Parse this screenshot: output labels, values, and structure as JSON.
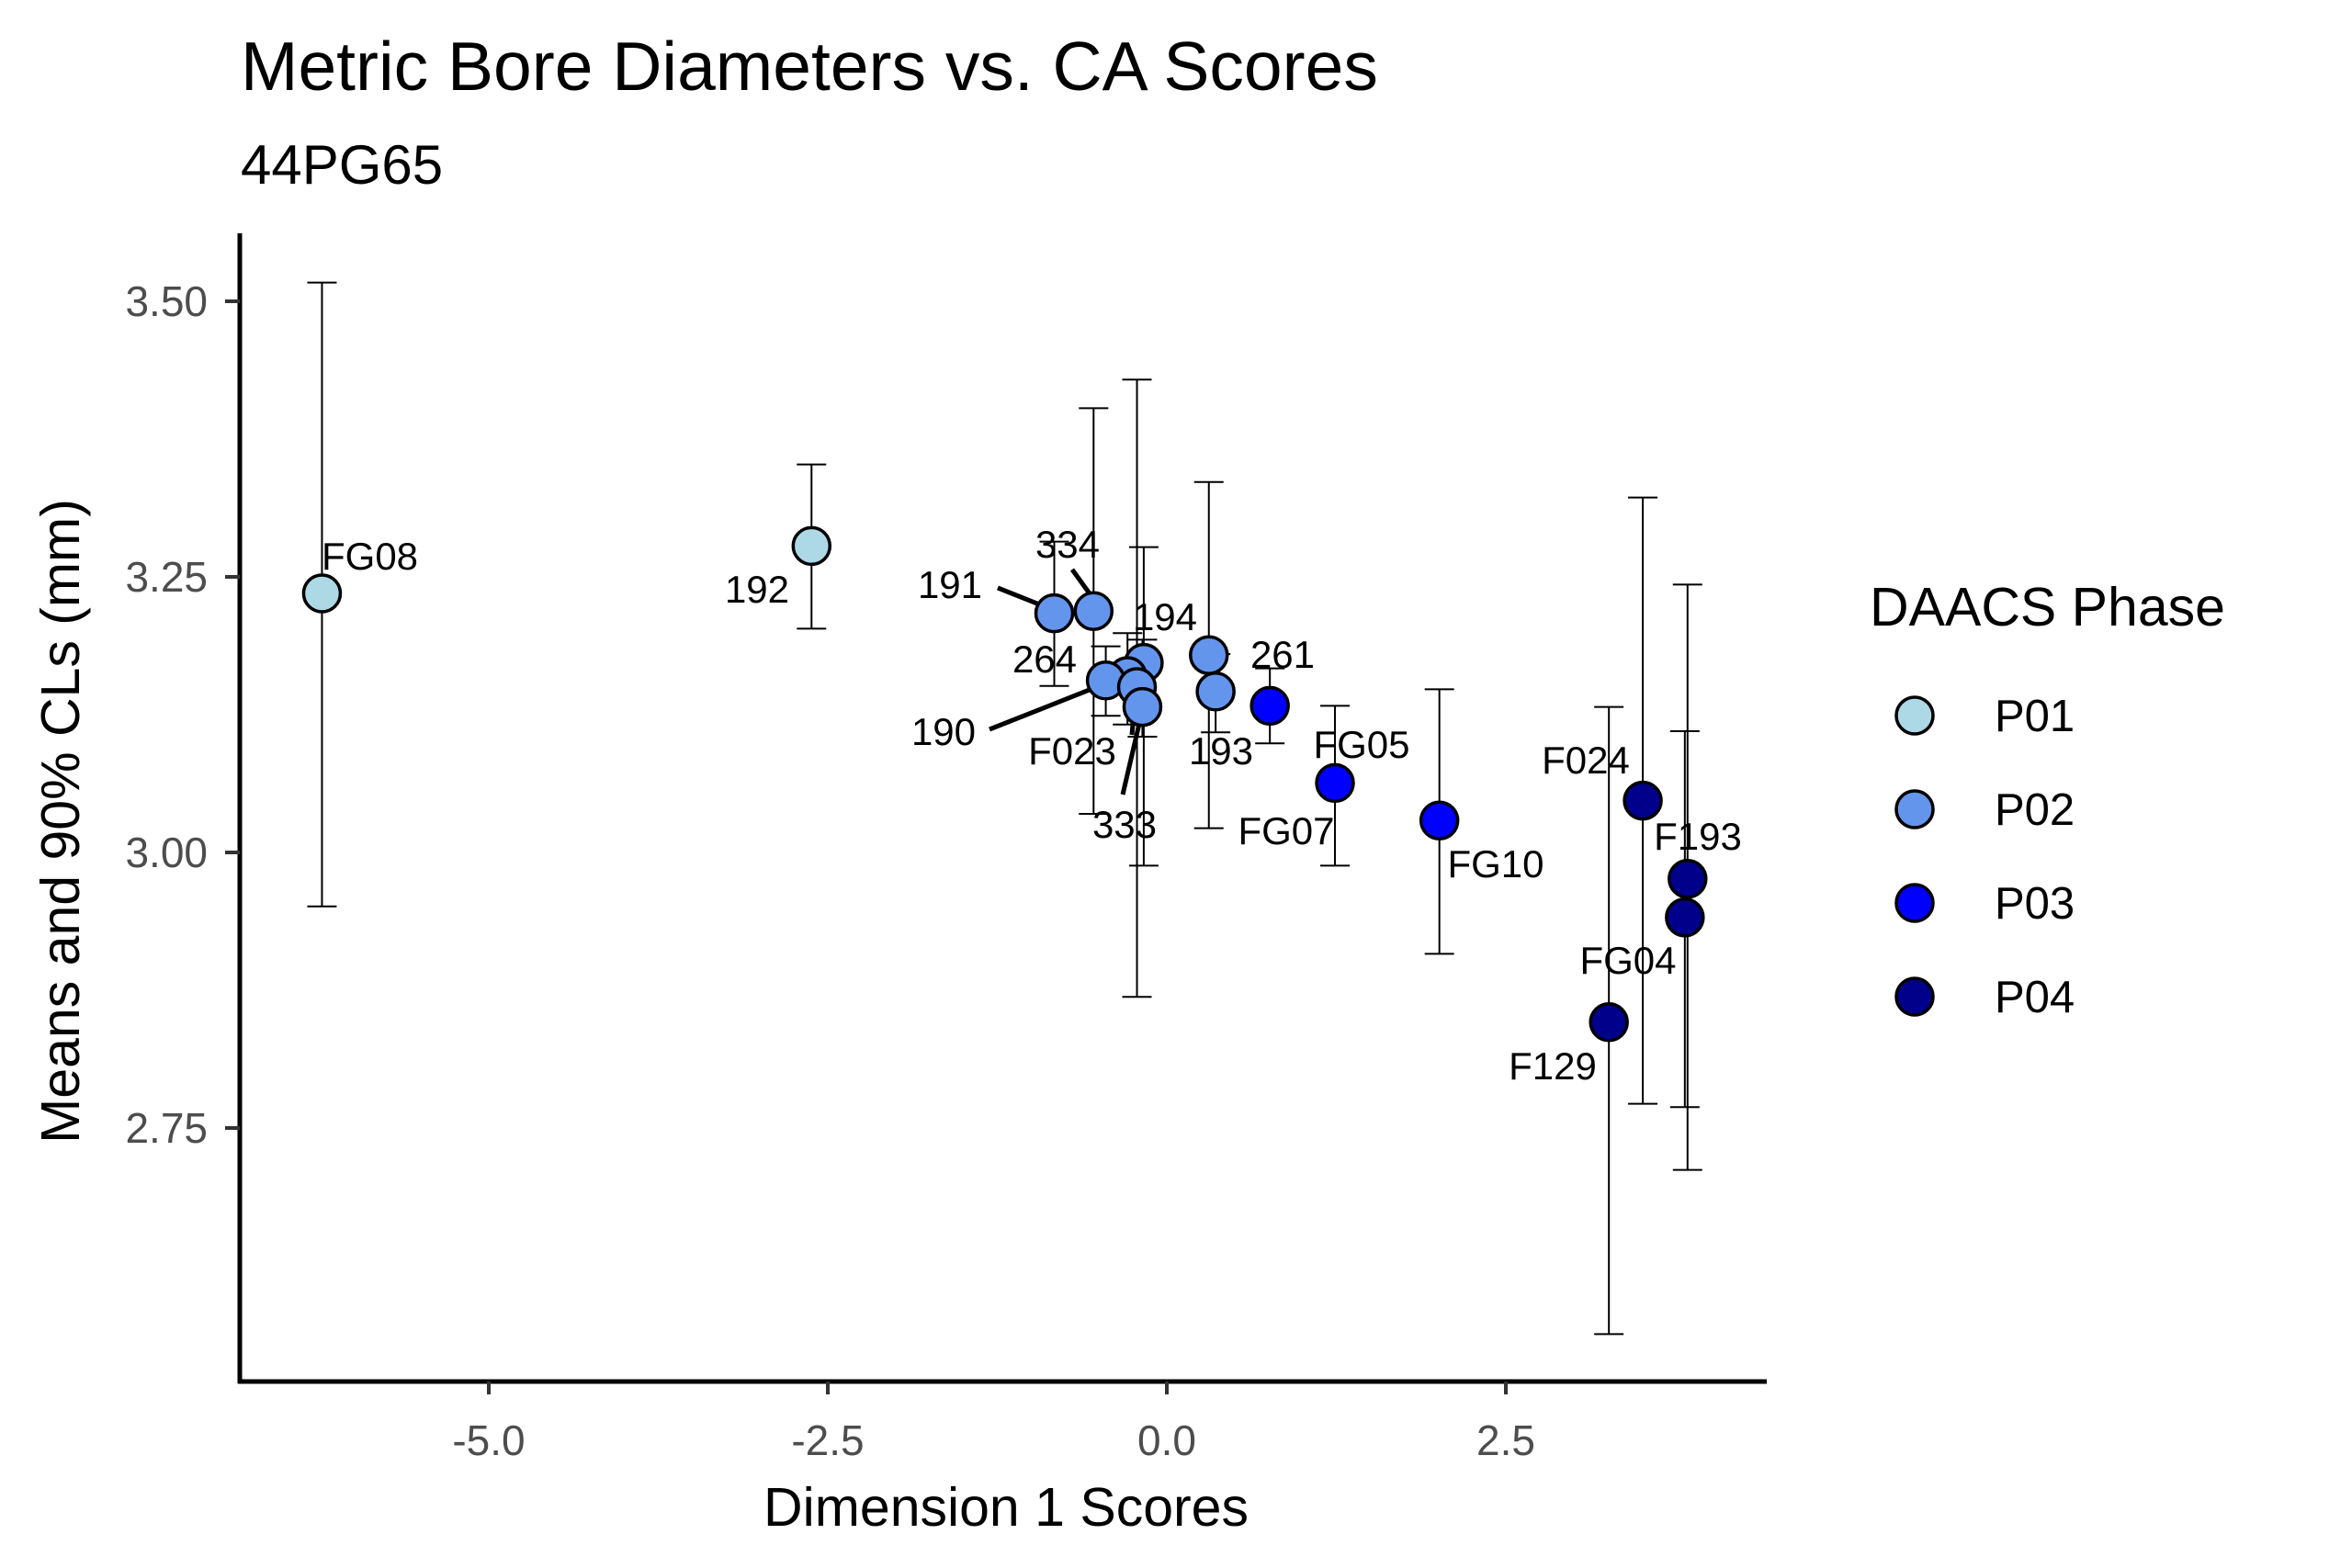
{
  "chart_data": {
    "type": "scatter",
    "title": "Metric Bore Diameters vs. CA Scores",
    "subtitle": "44PG65",
    "xlabel": "Dimension 1 Scores",
    "ylabel": "Means and 90% CLs (mm)",
    "xlim": [
      -6.7,
      4.42
    ],
    "ylim": [
      2.53,
      3.56
    ],
    "x_ticks": [
      -5.0,
      -2.5,
      0.0,
      2.5
    ],
    "x_tick_labels": [
      "-5.0",
      "-2.5",
      "0.0",
      "2.5"
    ],
    "y_ticks": [
      3.5,
      3.25,
      3.0,
      2.75
    ],
    "y_tick_labels": [
      "3.50",
      "3.25",
      "3.00",
      "2.75"
    ],
    "grid": false,
    "legend": {
      "title": "DAACS Phase",
      "placement": "right",
      "entries": [
        {
          "label": "P01",
          "color": "#ADD8E6"
        },
        {
          "label": "P02",
          "color": "#6495ED"
        },
        {
          "label": "P03",
          "color": "#0000FF"
        },
        {
          "label": "P04",
          "color": "#00008B"
        }
      ]
    },
    "points": [
      {
        "label": "FG08",
        "phase": "P01",
        "x": -6.23,
        "y": 3.235,
        "lower": 2.951,
        "upper": 3.517
      },
      {
        "label": "192",
        "phase": "P01",
        "x": -2.62,
        "y": 3.278,
        "lower": 3.203,
        "upper": 3.352
      },
      {
        "label": "191",
        "phase": "P02",
        "x": -0.83,
        "y": 3.217,
        "lower": 3.151,
        "upper": 3.282
      },
      {
        "label": "334",
        "phase": "P02",
        "x": -0.54,
        "y": 3.219,
        "lower": 3.035,
        "upper": 3.403
      },
      {
        "label": "194",
        "phase": "P02",
        "x": -0.17,
        "y": 3.172,
        "lower": 2.988,
        "upper": 3.277
      },
      {
        "label": "264",
        "phase": "P02",
        "x": -0.29,
        "y": 3.16,
        "lower": 3.116,
        "upper": 3.199
      },
      {
        "label": "190",
        "phase": "P02",
        "x": -0.45,
        "y": 3.156,
        "lower": 3.124,
        "upper": 3.187
      },
      {
        "label": "F023",
        "phase": "P02",
        "x": -0.22,
        "y": 3.15,
        "lower": 2.869,
        "upper": 3.429
      },
      {
        "label": "333",
        "phase": "P02",
        "x": -0.18,
        "y": 3.132,
        "lower": 3.105,
        "upper": 3.193
      },
      {
        "label": "261",
        "phase": "P02",
        "x": 0.31,
        "y": 3.179,
        "lower": 3.022,
        "upper": 3.336
      },
      {
        "label": "193",
        "phase": "P02",
        "x": 0.36,
        "y": 3.146,
        "lower": 3.109,
        "upper": 3.18
      },
      {
        "label": "FG07",
        "phase": "P03",
        "x": 0.76,
        "y": 3.133,
        "lower": 3.099,
        "upper": 3.167
      },
      {
        "label": "FG05",
        "phase": "P03",
        "x": 1.24,
        "y": 3.063,
        "lower": 2.988,
        "upper": 3.133
      },
      {
        "label": "FG10",
        "phase": "P03",
        "x": 2.01,
        "y": 3.029,
        "lower": 2.908,
        "upper": 3.148
      },
      {
        "label": "F129",
        "phase": "P04",
        "x": 3.26,
        "y": 2.846,
        "lower": 2.563,
        "upper": 3.132
      },
      {
        "label": "F024",
        "phase": "P04",
        "x": 3.51,
        "y": 3.047,
        "lower": 2.772,
        "upper": 3.322
      },
      {
        "label": "F193",
        "phase": "P04",
        "x": 3.84,
        "y": 2.976,
        "lower": 2.712,
        "upper": 3.243
      },
      {
        "label": "FG04",
        "phase": "P04",
        "x": 3.82,
        "y": 2.941,
        "lower": 2.769,
        "upper": 3.11
      }
    ]
  }
}
